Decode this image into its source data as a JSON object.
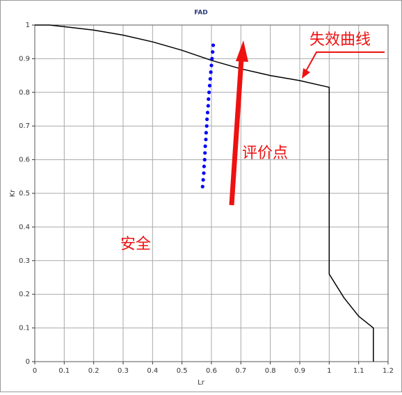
{
  "chart_data": {
    "type": "line",
    "title": "FAD",
    "x_label": "Lr",
    "y_label": "Kr",
    "xlim": [
      0,
      1.2
    ],
    "ylim": [
      0,
      1
    ],
    "xticks": [
      0,
      0.1,
      0.2,
      0.3,
      0.4,
      0.5,
      0.6,
      0.7,
      0.8,
      0.9,
      1,
      1.1,
      1.2
    ],
    "yticks": [
      0,
      0.1,
      0.2,
      0.3,
      0.4,
      0.5,
      0.6,
      0.7,
      0.8,
      0.9,
      1
    ],
    "grid": true,
    "series": [
      {
        "name": "失效曲线",
        "color": "#000000",
        "style": "line",
        "x": [
          0,
          0.05,
          0.1,
          0.2,
          0.3,
          0.4,
          0.5,
          0.6,
          0.7,
          0.8,
          0.9,
          1.0,
          1.0,
          1.05,
          1.1,
          1.15,
          1.15
        ],
        "values": [
          1,
          1,
          0.995,
          0.985,
          0.97,
          0.95,
          0.925,
          0.895,
          0.87,
          0.85,
          0.835,
          0.815,
          0.26,
          0.19,
          0.135,
          0.1,
          0
        ]
      },
      {
        "name": "评价点",
        "color": "#0000ff",
        "style": "scatter",
        "x": [
          0.57,
          0.572,
          0.574,
          0.575,
          0.577,
          0.578,
          0.579,
          0.581,
          0.582,
          0.584,
          0.585,
          0.587,
          0.589,
          0.59,
          0.592,
          0.594,
          0.596,
          0.598,
          0.6,
          0.602,
          0.604,
          0.606
        ],
        "values": [
          0.52,
          0.54,
          0.56,
          0.58,
          0.6,
          0.62,
          0.64,
          0.66,
          0.68,
          0.7,
          0.72,
          0.74,
          0.76,
          0.78,
          0.8,
          0.82,
          0.84,
          0.86,
          0.88,
          0.9,
          0.92,
          0.94
        ]
      }
    ],
    "annotations": [
      "安全"
    ]
  }
}
